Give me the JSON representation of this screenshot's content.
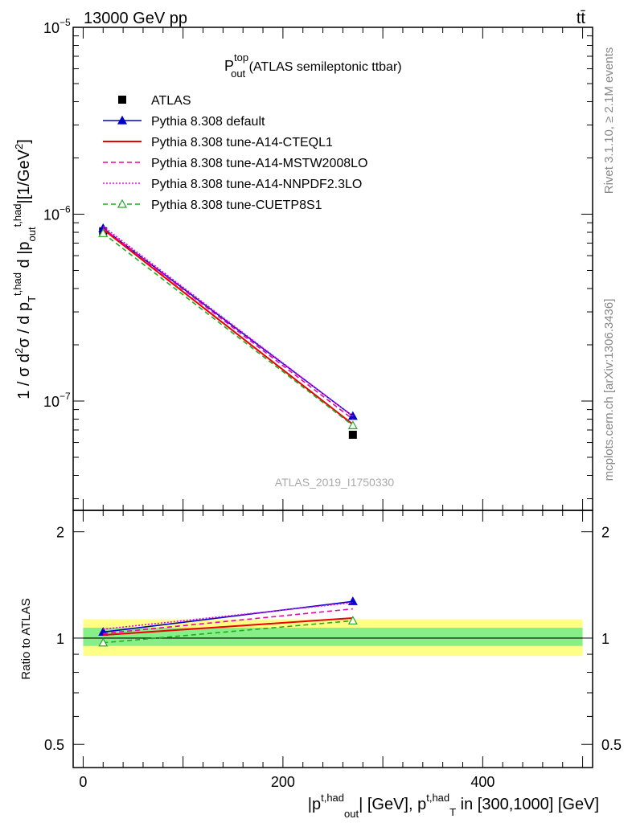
{
  "header": {
    "left": "13000 GeV pp",
    "right": "tt̄"
  },
  "side_labels": {
    "rivet": "Rivet 3.1.10, ≥ 2.1M events",
    "mcplots": "mcplots.cern.ch [arXiv:1306.3436]"
  },
  "watermark": "ATLAS_2019_I1750330",
  "chart_data": [
    {
      "type": "line",
      "panel": "main",
      "title": {
        "base": "P",
        "sup": "top",
        "sub": "out",
        "rest": " (ATLAS semileptonic ttbar)"
      },
      "ylabel": "1 / σ d²σ / d p_T^{t,had} d |p_out^{t,had}| [1/GeV²]",
      "yscale": "log",
      "ylim": [
        2.6e-08,
        1e-05
      ],
      "xlim": [
        -10,
        510
      ],
      "y_tick_labels": [
        {
          "value": 1e-05,
          "mant": "10",
          "exp": "−5"
        },
        {
          "value": 1e-06,
          "mant": "10",
          "exp": "−6"
        },
        {
          "value": 1e-07,
          "mant": "10",
          "exp": "−7"
        }
      ],
      "legend_position": "top-left",
      "series": [
        {
          "name": "ATLAS",
          "style": "data",
          "color": "#000000",
          "x": [
            20,
            270
          ],
          "y": [
            8.1e-07,
            6.6e-08
          ]
        },
        {
          "name": "Pythia 8.308 default",
          "style": "solid-triangle",
          "color": "#0000cc",
          "x": [
            20,
            270
          ],
          "y": [
            8.4e-07,
            8.3e-08
          ]
        },
        {
          "name": "Pythia 8.308 tune-A14-CTEQL1",
          "style": "solid",
          "color": "#ee0000",
          "x": [
            20,
            270
          ],
          "y": [
            8.3e-07,
            7.5e-08
          ]
        },
        {
          "name": "Pythia 8.308 tune-A14-MSTW2008LO",
          "style": "dashed",
          "color": "#ee00aa",
          "x": [
            20,
            270
          ],
          "y": [
            8.4e-07,
            8e-08
          ]
        },
        {
          "name": "Pythia 8.308 tune-A14-NNPDF2.3LO",
          "style": "dotted",
          "color": "#ee00ee",
          "x": [
            20,
            270
          ],
          "y": [
            8.6e-07,
            8.3e-08
          ]
        },
        {
          "name": "Pythia 8.308 tune-CUETP8S1",
          "style": "dashed-open-triangle",
          "color": "#22aa22",
          "x": [
            20,
            270
          ],
          "y": [
            7.9e-07,
            7.4e-08
          ]
        }
      ]
    },
    {
      "type": "line",
      "panel": "ratio",
      "ylabel": "Ratio to ATLAS",
      "xlabel": "|p_out^{t,had}| [GeV], p_T^{t,had} in [300,1000] [GeV]",
      "yscale": "log",
      "ylim": [
        0.43,
        2.3
      ],
      "xlim": [
        -10,
        510
      ],
      "y_ticks": [
        0.5,
        1,
        2
      ],
      "y_tick_labels": [
        "0.5",
        "1",
        "2"
      ],
      "x_ticks": [
        0,
        200,
        400
      ],
      "x_tick_labels": [
        "0",
        "200",
        "400"
      ],
      "bands": {
        "x": [
          0,
          500
        ],
        "stat_sys": [
          0.89,
          1.13
        ],
        "stat": [
          0.95,
          1.07
        ]
      },
      "reference": 1.0,
      "series": [
        {
          "name": "Pythia 8.308 default",
          "x": [
            20,
            270
          ],
          "y": [
            1.04,
            1.27
          ]
        },
        {
          "name": "Pythia 8.308 tune-A14-CTEQL1",
          "x": [
            20,
            270
          ],
          "y": [
            1.02,
            1.14
          ]
        },
        {
          "name": "Pythia 8.308 tune-A14-MSTW2008LO",
          "x": [
            20,
            270
          ],
          "y": [
            1.03,
            1.21
          ]
        },
        {
          "name": "Pythia 8.308 tune-A14-NNPDF2.3LO",
          "x": [
            20,
            270
          ],
          "y": [
            1.06,
            1.26
          ]
        },
        {
          "name": "Pythia 8.308 tune-CUETP8S1",
          "x": [
            20,
            270
          ],
          "y": [
            0.97,
            1.12
          ]
        }
      ]
    }
  ]
}
